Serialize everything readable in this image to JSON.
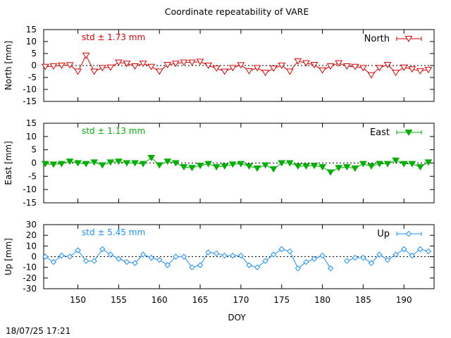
{
  "title": "Coordinate repeatability of VARE",
  "timestamp": "18/07/25 17:21",
  "xlabel": "DOY",
  "x_ticks": [
    150,
    155,
    160,
    165,
    170,
    175,
    180,
    185,
    190
  ],
  "xlim": [
    145.8,
    193.7
  ],
  "colors": {
    "north": "#e00000",
    "east": "#00b000",
    "up": "#1e90ff"
  },
  "chart_data": [
    {
      "type": "line",
      "panel": "north",
      "ylabel": "North [mm]",
      "ylim": [
        -15,
        15
      ],
      "y_ticks": [
        15,
        10,
        5,
        0,
        -5,
        -10,
        -15
      ],
      "series_name": "North",
      "std_label": "std ± 1.73 mm",
      "marker": "triangle-down-open",
      "x": [
        146,
        147,
        148,
        149,
        150,
        151,
        152,
        153,
        154,
        155,
        156,
        157,
        158,
        159,
        160,
        161,
        162,
        163,
        164,
        165,
        166,
        167,
        168,
        169,
        170,
        171,
        172,
        173,
        174,
        175,
        176,
        177,
        178,
        179,
        180,
        181,
        182,
        183,
        184,
        185,
        186,
        187,
        188,
        189,
        190,
        191,
        192,
        193
      ],
      "y": [
        -0.5,
        -0.3,
        0,
        0.2,
        -2.5,
        4.2,
        -2.5,
        -1,
        -0.8,
        1.3,
        0.8,
        -0.3,
        0.8,
        -0.5,
        -2.5,
        0.3,
        0.8,
        1.3,
        1.3,
        1.6,
        0,
        -1.2,
        -2.5,
        -1,
        0.2,
        -2.3,
        -1,
        -3,
        -1.2,
        0,
        -2.5,
        1.8,
        1,
        0.3,
        -2,
        -0.3,
        1,
        -0.3,
        -0.5,
        -1,
        -4,
        -1,
        0.3,
        -3,
        -0.8,
        -1.5,
        -2.3,
        -1.8
      ]
    },
    {
      "type": "line",
      "panel": "east",
      "ylabel": "East [mm]",
      "ylim": [
        -15,
        15
      ],
      "y_ticks": [
        15,
        10,
        5,
        0,
        -5,
        -10,
        -15
      ],
      "series_name": "East",
      "std_label": "std ± 1.13 mm",
      "marker": "triangle-down-filled",
      "x": [
        146,
        147,
        148,
        149,
        150,
        151,
        152,
        153,
        154,
        155,
        156,
        157,
        158,
        159,
        160,
        161,
        162,
        163,
        164,
        165,
        166,
        167,
        168,
        169,
        170,
        171,
        172,
        173,
        174,
        175,
        176,
        177,
        178,
        179,
        180,
        181,
        182,
        183,
        184,
        185,
        186,
        187,
        188,
        189,
        190,
        191,
        192,
        193
      ],
      "y": [
        -0.3,
        -0.5,
        -0.3,
        0.6,
        0,
        -0.3,
        0.3,
        -0.8,
        0.3,
        0.6,
        0,
        0,
        -0.3,
        2,
        -0.8,
        0.6,
        0,
        -1.5,
        -1.8,
        -1,
        -0.3,
        -1.5,
        -1.2,
        -0.5,
        -0.3,
        -1.2,
        -2,
        -0.8,
        -2.3,
        0,
        0,
        -1.2,
        -1.2,
        -1,
        -1.5,
        -3.5,
        -1.8,
        -1.5,
        -2,
        -0.3,
        -1.2,
        -0.3,
        -0.3,
        1,
        -0.3,
        -0.3,
        -1.5,
        0.3
      ]
    },
    {
      "type": "line",
      "panel": "up",
      "ylabel": "Up [mm]",
      "ylim": [
        -30,
        30
      ],
      "y_ticks": [
        30,
        20,
        10,
        0,
        -10,
        -20,
        -30
      ],
      "series_name": "Up",
      "std_label": "std ± 5.45 mm",
      "marker": "diamond-open",
      "x": [
        146,
        147,
        148,
        149,
        150,
        151,
        152,
        153,
        154,
        155,
        156,
        157,
        158,
        159,
        160,
        161,
        162,
        163,
        164,
        165,
        166,
        167,
        168,
        169,
        170,
        171,
        172,
        173,
        174,
        175,
        176,
        177,
        178,
        179,
        180,
        181,
        182,
        183,
        184,
        185,
        186,
        187,
        188,
        189,
        190,
        191,
        192,
        193
      ],
      "y": [
        0,
        -5,
        1,
        0,
        6,
        -4,
        -4,
        7,
        2,
        -2,
        -5,
        -6,
        2,
        -1,
        -3,
        -8,
        0,
        0,
        -10,
        -8,
        4,
        3,
        1,
        1,
        1,
        -8,
        -10,
        -4,
        2,
        7,
        5,
        -11,
        -5,
        -2,
        1,
        -11,
        null,
        -4,
        -1,
        -1,
        -6,
        2,
        -3,
        2,
        7,
        1,
        7,
        5
      ]
    }
  ]
}
